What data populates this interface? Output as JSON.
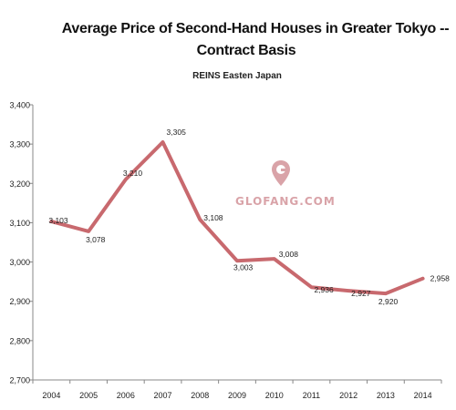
{
  "chart_data": {
    "type": "line",
    "title_line1": "Average Price of Second-Hand Houses in Greater Tokyo --",
    "title_line2": "Contract Basis",
    "subtitle": "REINS Easten Japan",
    "categories": [
      "2004",
      "2005",
      "2006",
      "2007",
      "2008",
      "2009",
      "2010",
      "2011",
      "2012",
      "2013",
      "2014"
    ],
    "series": [
      {
        "values": [
          3103,
          3078,
          3210,
          3305,
          3108,
          3003,
          3008,
          2936,
          2927,
          2920,
          2958
        ]
      }
    ],
    "data_labels": [
      "3,103",
      "3,078",
      "3,210",
      "3,305",
      "3,108",
      "3,003",
      "3,008",
      "2,936",
      "2,927",
      "2,920",
      "2,958"
    ],
    "ylim": [
      2700,
      3400
    ],
    "yticks": [
      "2,700",
      "2,800",
      "2,900",
      "3,000",
      "3,100",
      "3,200",
      "3,300",
      "3,400"
    ],
    "ytick_values": [
      2700,
      2800,
      2900,
      3000,
      3100,
      3200,
      3300,
      3400
    ],
    "grid": false,
    "legend": "none",
    "line_color": "#c8696e",
    "axis_color": "#888888"
  },
  "watermark": {
    "text": "GLOFANG.COM",
    "icon": "map-pin-icon",
    "color": "#d9a3a8"
  }
}
